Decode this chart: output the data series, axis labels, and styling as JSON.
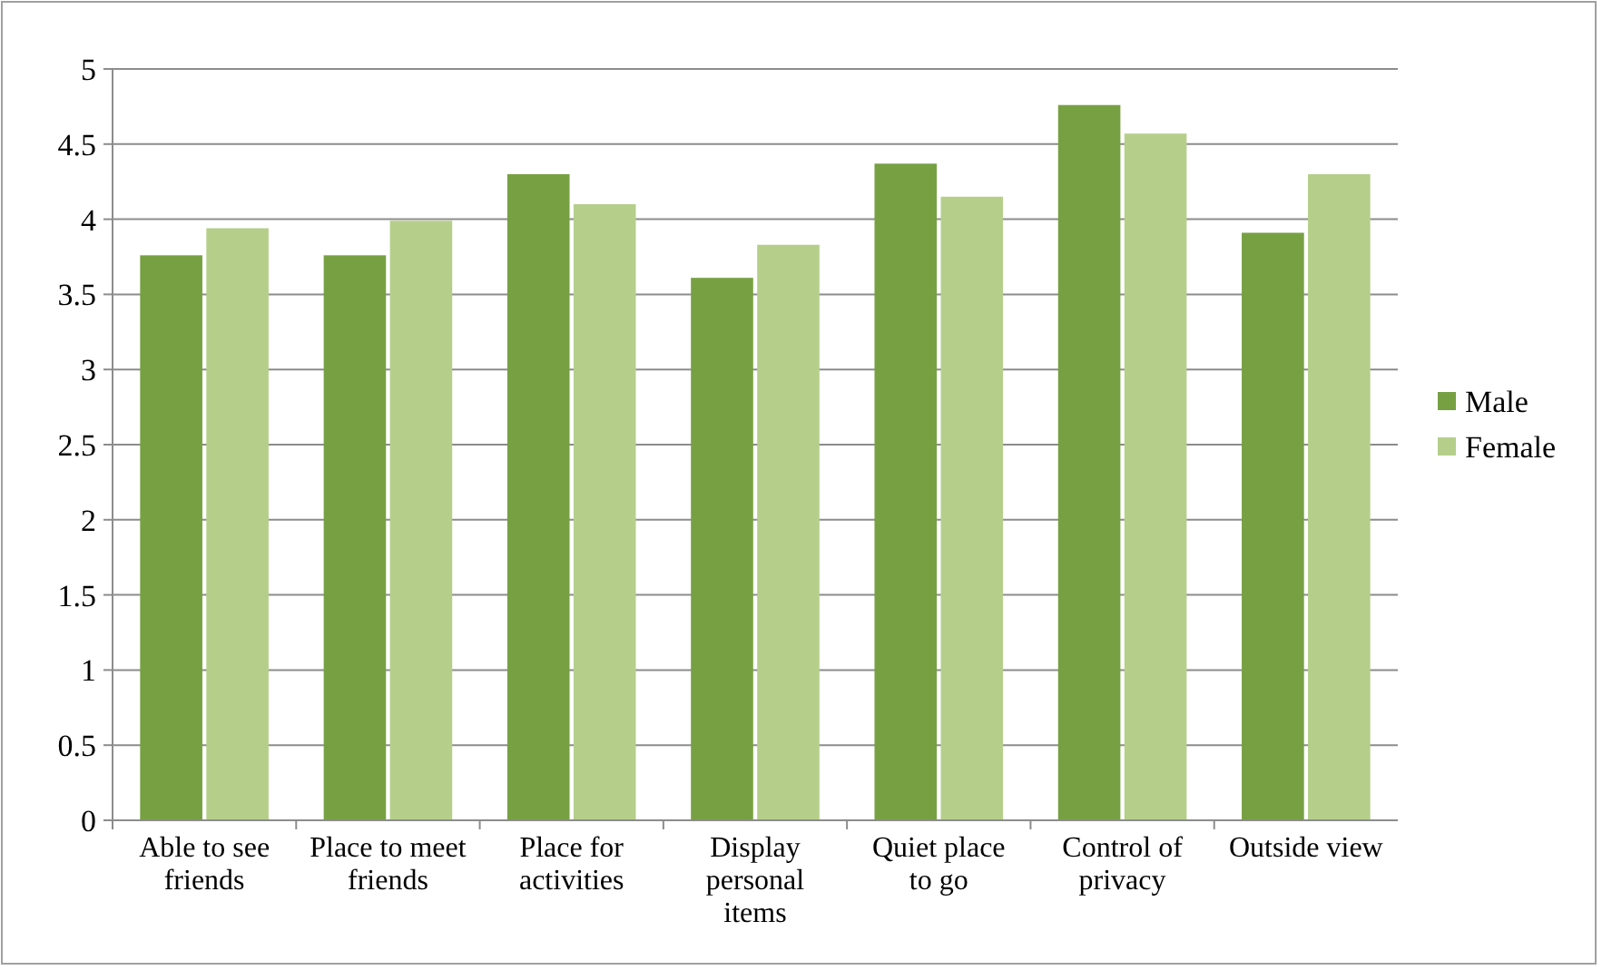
{
  "chart_data": {
    "type": "bar",
    "categories": [
      "Able to see friends",
      "Place to meet friends",
      "Place for activities",
      "Display personal items",
      "Quiet place to go",
      "Control of privacy",
      "Outside view"
    ],
    "series": [
      {
        "name": "Male",
        "color": "#77a043",
        "values": [
          3.76,
          3.76,
          4.3,
          3.61,
          4.37,
          4.76,
          3.91
        ]
      },
      {
        "name": "Female",
        "color": "#b5cf8b",
        "values": [
          3.94,
          3.99,
          4.1,
          3.83,
          4.15,
          4.57,
          4.3
        ]
      }
    ],
    "ylim": [
      0,
      5
    ],
    "yticks": [
      0,
      0.5,
      1,
      1.5,
      2,
      2.5,
      3,
      3.5,
      4,
      4.5,
      5
    ],
    "grid": "y",
    "legend": "right"
  }
}
